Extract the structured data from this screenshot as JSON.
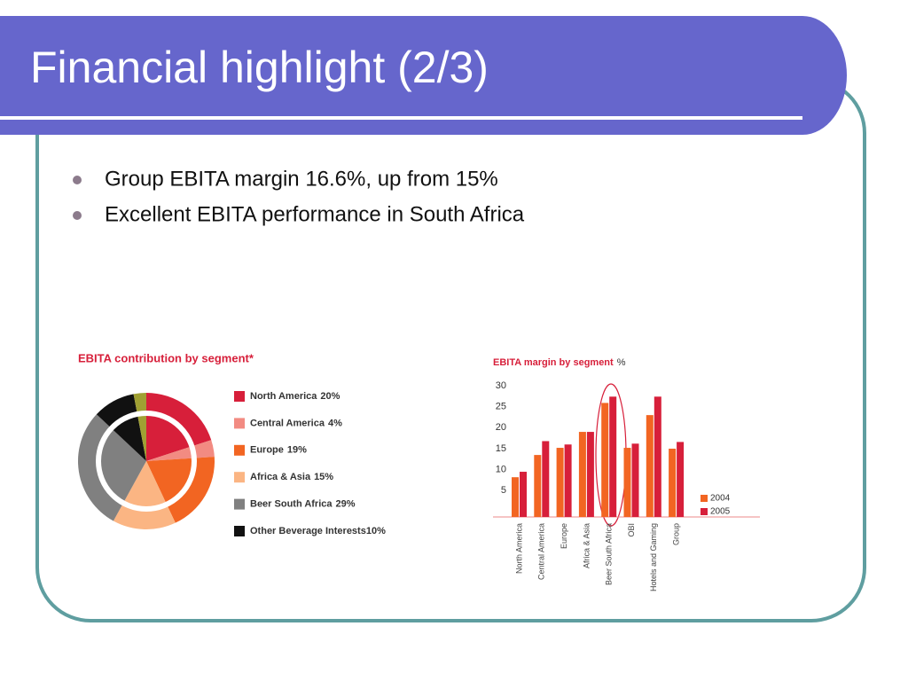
{
  "title": "Financial highlight (2/3)",
  "bullets": [
    "Group EBITA margin 16.6%, up from 15%",
    "Excellent EBITA performance in South Africa"
  ],
  "chart_data": [
    {
      "type": "pie",
      "title": "EBITA contribution by segment*",
      "categories": [
        "North America",
        "Central America",
        "Europe",
        "Africa & Asia",
        "Beer South Africa",
        "Other Beverage Interests",
        null
      ],
      "values": [
        20,
        4,
        19,
        15,
        29,
        10,
        3
      ],
      "value_labels": [
        "20%",
        "4%",
        "19%",
        "15%",
        "29%",
        "10%",
        null
      ],
      "colors": [
        "#d71f3a",
        "#f28b82",
        "#f26522",
        "#fbb583",
        "#808080",
        "#111111",
        "#a0a033"
      ]
    },
    {
      "type": "bar",
      "title": "EBITA margin by segment",
      "y_unit": "%",
      "categories": [
        "North America",
        "Central America",
        "Europe",
        "Africa & Asia",
        "Beer South Africa",
        "OBI",
        "Hotels and Gaming",
        "Group"
      ],
      "series": [
        {
          "name": "2004",
          "color": "#f26522",
          "values": [
            8.2,
            13.5,
            15.2,
            19,
            25.9,
            15.2,
            23,
            15
          ]
        },
        {
          "name": "2005",
          "color": "#d71f3a",
          "values": [
            9.5,
            16.8,
            16,
            19,
            27.4,
            16.2,
            27.4,
            16.6
          ]
        }
      ],
      "ylim": [
        0,
        30
      ],
      "yticks": [
        5,
        10,
        15,
        20,
        25,
        30
      ]
    }
  ]
}
